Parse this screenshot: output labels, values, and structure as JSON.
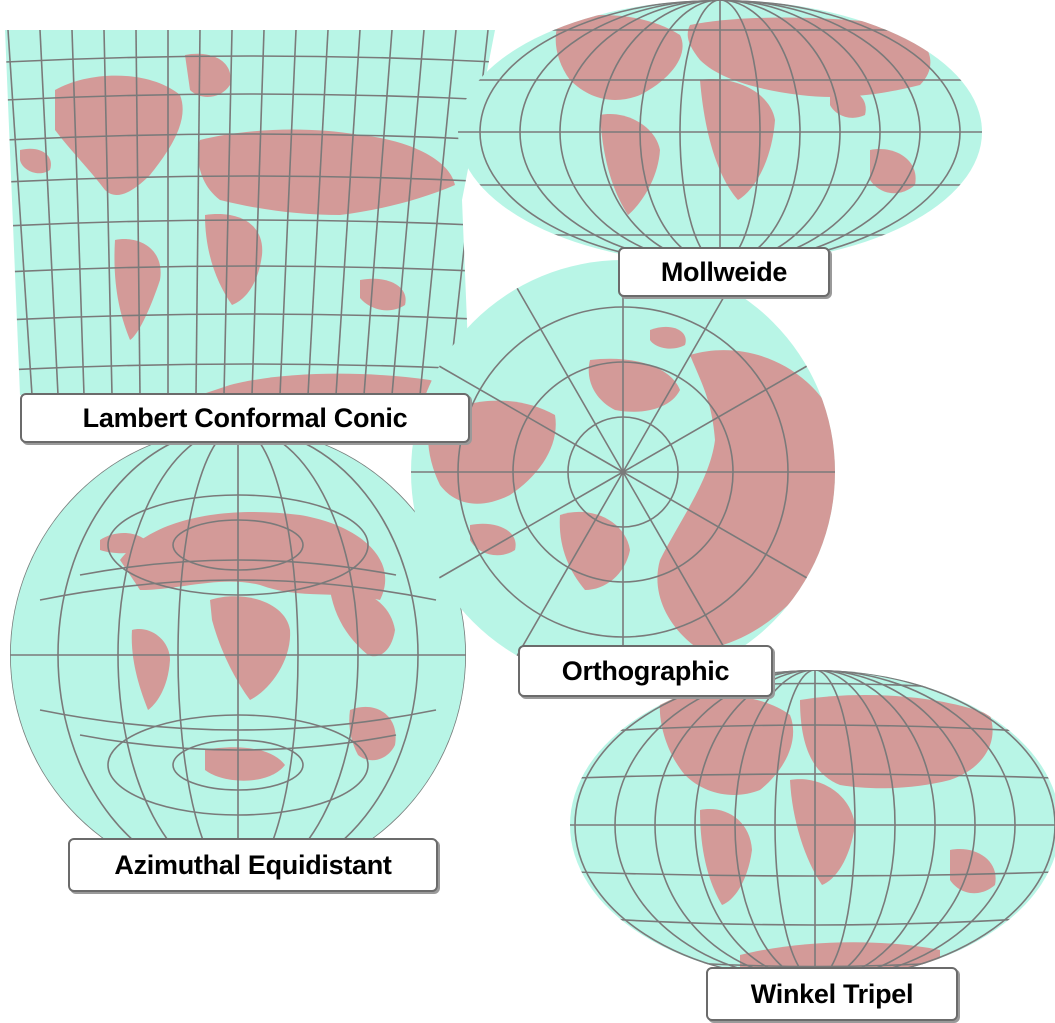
{
  "colors": {
    "ocean": "#b8f5e6",
    "land": "#d39a98",
    "graticule": "#7a7a7a",
    "label_bg": "#ffffff",
    "label_text": "#000000"
  },
  "maps": [
    {
      "id": "lambert",
      "label": "Lambert Conformal Conic"
    },
    {
      "id": "mollweide",
      "label": "Mollweide"
    },
    {
      "id": "orthographic",
      "label": "Orthographic"
    },
    {
      "id": "azimuthal",
      "label": "Azimuthal Equidistant"
    },
    {
      "id": "winkel",
      "label": "Winkel Tripel"
    }
  ]
}
